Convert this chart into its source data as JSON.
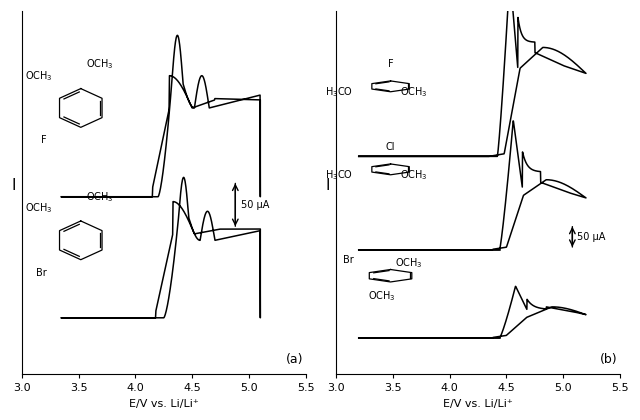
{
  "xlim": [
    3.0,
    5.5
  ],
  "xticks": [
    3.0,
    3.5,
    4.0,
    4.5,
    5.0,
    5.5
  ],
  "xlabel": "E/V vs. Li/Li⁺",
  "ylabel": "I",
  "panel_a_label": "(a)",
  "panel_b_label": "(b)",
  "scale_bar_label": "50 μA",
  "bg_color": "#ffffff",
  "line_color": "#000000",
  "fig_width": 6.4,
  "fig_height": 4.2
}
